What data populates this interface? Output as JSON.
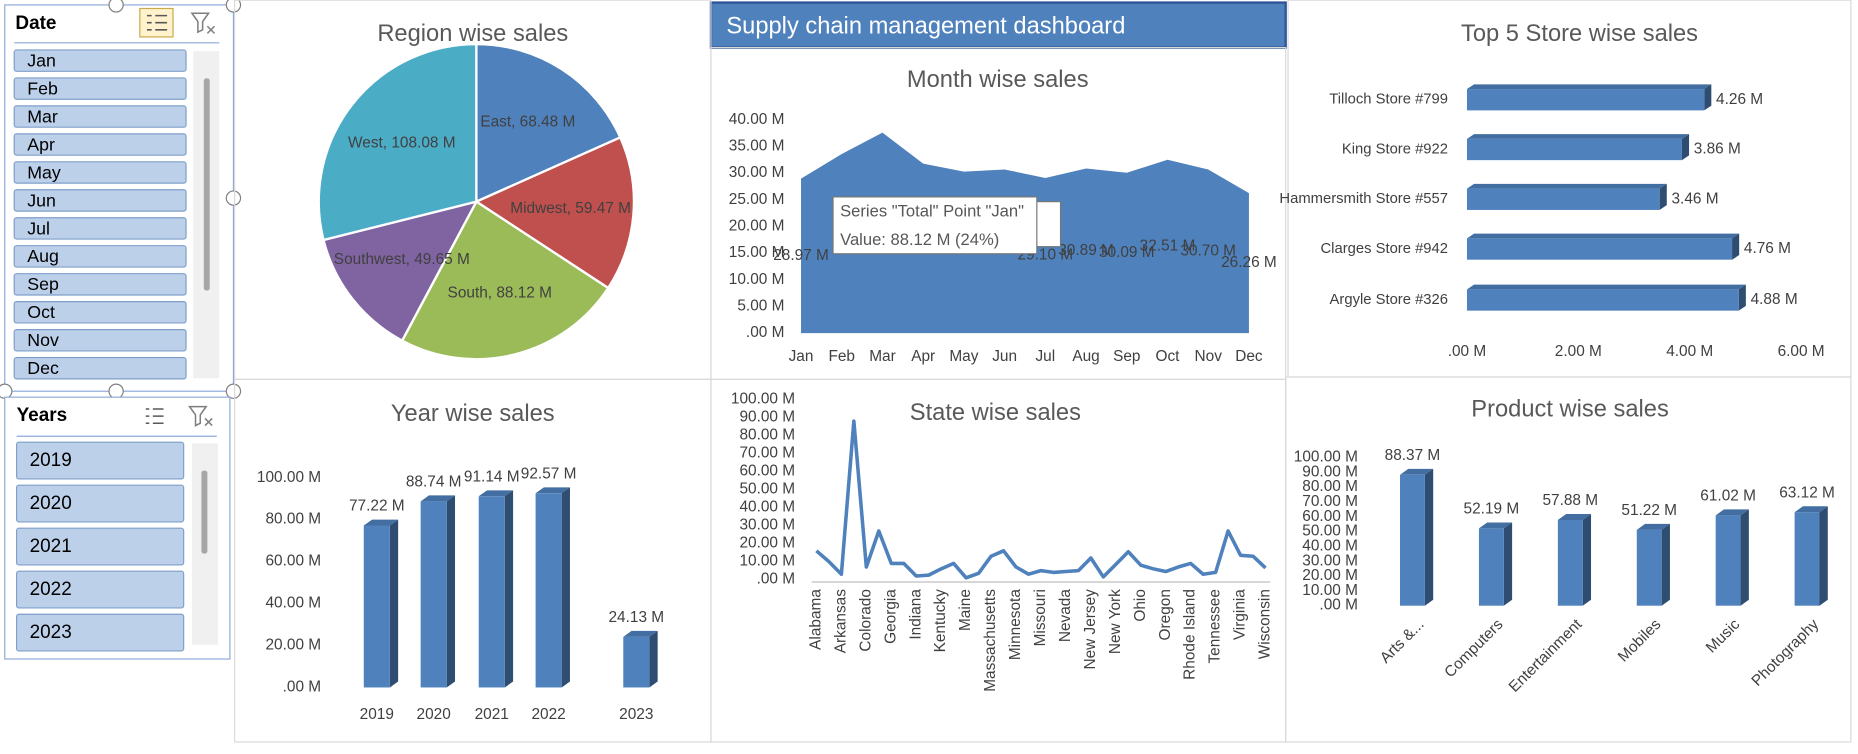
{
  "title": "Supply chain management dashboard",
  "slicers": [
    {
      "header": "Date",
      "items": [
        "Jan",
        "Feb",
        "Mar",
        "Apr",
        "May",
        "Jun",
        "Jul",
        "Aug",
        "Sep",
        "Oct",
        "Nov",
        "Dec"
      ]
    },
    {
      "header": "Years",
      "items": [
        "2019",
        "2020",
        "2021",
        "2022",
        "2023"
      ]
    }
  ],
  "tooltip": {
    "series_line": "Series \"Total\" Point \"Jan\"",
    "value_line": "Value: 88.12 M (24%)"
  },
  "chart_data": [
    {
      "type": "pie",
      "title": "Region wise sales",
      "values": [
        68.48,
        59.47,
        88.12,
        49.65,
        108.08
      ],
      "value_labels": [
        "East, 68.48 M",
        "Midwest, 59.47 M",
        "South, 88.12 M",
        "Southwest, 49.65 M",
        "West, 108.08 M"
      ],
      "colors": [
        "#4f81bd",
        "#c0504d",
        "#9bbb59",
        "#8064a2",
        "#4bacc6"
      ]
    },
    {
      "type": "area",
      "title": "Month wise sales",
      "categories": [
        "Jan",
        "Feb",
        "Mar",
        "Apr",
        "May",
        "Jun",
        "Jul",
        "Aug",
        "Sep",
        "Oct",
        "Nov",
        "Dec"
      ],
      "values": [
        28.97,
        33.6,
        37.6,
        31.8,
        30.3,
        30.7,
        29.1,
        30.89,
        30.09,
        32.51,
        30.7,
        26.26
      ],
      "value_labels": [
        "28.97 M",
        null,
        null,
        null,
        null,
        null,
        "29.10 M",
        "30.89 M",
        "30.09 M",
        "32.51 M",
        "30.70 M",
        "26.26 M"
      ],
      "color": "#4f81bd",
      "ylim": [
        0,
        40
      ],
      "yticks": [
        {
          "value": 0,
          "label": ".00 M"
        },
        {
          "value": 5,
          "label": "5.00 M"
        },
        {
          "value": 10,
          "label": "10.00 M"
        },
        {
          "value": 15,
          "label": "15.00 M"
        },
        {
          "value": 20,
          "label": "20.00 M"
        },
        {
          "value": 25,
          "label": "25.00 M"
        },
        {
          "value": 30,
          "label": "30.00 M"
        },
        {
          "value": 35,
          "label": "35.00 M"
        },
        {
          "value": 40,
          "label": "40.00 M"
        }
      ]
    },
    {
      "type": "hbar",
      "title": "Top 5 Store wise sales",
      "categories": [
        "Tilloch Store #799",
        "King Store #922",
        "Hammersmith Store #557",
        "Clarges Store #942",
        "Argyle Store #326"
      ],
      "values": [
        4.26,
        3.86,
        3.46,
        4.76,
        4.88
      ],
      "value_labels": [
        "4.26 M",
        "3.86 M",
        "3.46 M",
        "4.76 M",
        "4.88 M"
      ],
      "color": "#4f81bd",
      "xlim": [
        0,
        6
      ],
      "xticks": [
        {
          "value": 0,
          "label": ".00 M"
        },
        {
          "value": 2,
          "label": "2.00 M"
        },
        {
          "value": 4,
          "label": "4.00 M"
        },
        {
          "value": 6,
          "label": "6.00 M"
        }
      ]
    },
    {
      "type": "bar",
      "title": "Year wise sales",
      "categories": [
        "2019",
        "2020",
        "2021",
        "2022",
        "2023"
      ],
      "values": [
        77.22,
        88.74,
        91.14,
        92.57,
        24.13
      ],
      "value_labels": [
        "77.22 M",
        "88.74 M",
        "91.14 M",
        "92.57 M",
        "24.13 M"
      ],
      "color": "#4f81bd",
      "ylim": [
        0,
        100
      ],
      "yticks": [
        {
          "value": 0,
          "label": ".00 M"
        },
        {
          "value": 20,
          "label": "20.00 M"
        },
        {
          "value": 40,
          "label": "40.00 M"
        },
        {
          "value": 60,
          "label": "60.00 M"
        },
        {
          "value": 80,
          "label": "80.00 M"
        },
        {
          "value": 100,
          "label": "100.00 M"
        }
      ]
    },
    {
      "type": "line",
      "title": "State wise sales",
      "categories": [
        "Alabama",
        null,
        "Arkansas",
        null,
        "Colorado",
        null,
        "Georgia",
        null,
        "Indiana",
        null,
        "Kentucky",
        null,
        "Maine",
        null,
        "Massachusetts",
        null,
        "Minnesota",
        null,
        "Missouri",
        null,
        "Nevada",
        null,
        "New Jersey",
        null,
        "New York",
        null,
        "Ohio",
        null,
        "Oregon",
        null,
        "Rhode Island",
        null,
        "Tennessee",
        null,
        "Virginia",
        null,
        "Wisconsin"
      ],
      "values": [
        16,
        10,
        3,
        88,
        7,
        27,
        9,
        9,
        2,
        2.5,
        6,
        9,
        1,
        3.5,
        13,
        16,
        7,
        3,
        5,
        4,
        4.5,
        5,
        12,
        1.5,
        8.5,
        15.5,
        8,
        6,
        4.5,
        7,
        9,
        3,
        4,
        27,
        13.5,
        13,
        6.5
      ],
      "color": "#4f81bd",
      "ylim": [
        0,
        100
      ],
      "yticks": [
        {
          "value": 0,
          "label": ".00 M"
        },
        {
          "value": 10,
          "label": "10.00 M"
        },
        {
          "value": 20,
          "label": "20.00 M"
        },
        {
          "value": 30,
          "label": "30.00 M"
        },
        {
          "value": 40,
          "label": "40.00 M"
        },
        {
          "value": 50,
          "label": "50.00 M"
        },
        {
          "value": 60,
          "label": "60.00 M"
        },
        {
          "value": 70,
          "label": "70.00 M"
        },
        {
          "value": 80,
          "label": "80.00 M"
        },
        {
          "value": 90,
          "label": "90.00 M"
        },
        {
          "value": 100,
          "label": "100.00 M"
        }
      ]
    },
    {
      "type": "bar",
      "title": "Product wise sales",
      "categories": [
        "Arts &...",
        "Computers",
        "Entertainment",
        "Mobiles",
        "Music",
        "Photography"
      ],
      "values": [
        88.37,
        52.19,
        57.88,
        51.22,
        61.02,
        63.12
      ],
      "value_labels": [
        "88.37 M",
        "52.19 M",
        "57.88 M",
        "51.22 M",
        "61.02 M",
        "63.12 M"
      ],
      "color": "#4f81bd",
      "ylim": [
        0,
        100
      ],
      "yticks": [
        {
          "value": 0,
          "label": ".00 M"
        },
        {
          "value": 10,
          "label": "10.00 M"
        },
        {
          "value": 20,
          "label": "20.00 M"
        },
        {
          "value": 30,
          "label": "30.00 M"
        },
        {
          "value": 40,
          "label": "40.00 M"
        },
        {
          "value": 50,
          "label": "50.00 M"
        },
        {
          "value": 60,
          "label": "60.00 M"
        },
        {
          "value": 70,
          "label": "70.00 M"
        },
        {
          "value": 80,
          "label": "80.00 M"
        },
        {
          "value": 90,
          "label": "90.00 M"
        },
        {
          "value": 100,
          "label": "100.00 M"
        }
      ]
    }
  ]
}
